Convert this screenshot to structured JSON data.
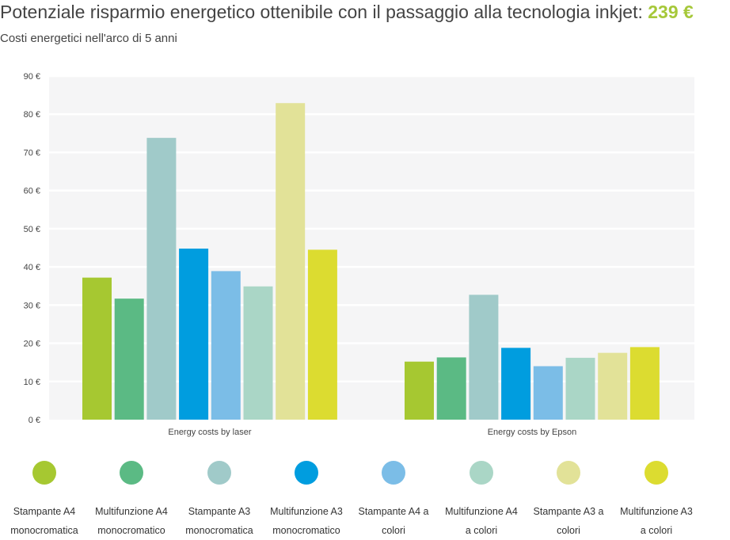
{
  "header": {
    "title_text": "Potenziale risparmio energetico ottenibile con il passaggio alla tecnologia inkjet:",
    "title_amount": "239 €",
    "subtitle": "Costi energetici nell'arco di 5 anni"
  },
  "colors": {
    "accent": "#a6c83a",
    "plot_background": "#f5f5f6",
    "gridline": "#ffffff"
  },
  "chart_data": {
    "type": "bar",
    "title": "",
    "xlabel": "",
    "ylabel": "",
    "ylim": [
      0,
      90
    ],
    "y_ticks": [
      0,
      10,
      20,
      30,
      40,
      50,
      60,
      70,
      80,
      90
    ],
    "y_unit": "€",
    "grid": true,
    "legend_position": "bottom",
    "categories": [
      "Energy costs by laser",
      "Energy costs by Epson"
    ],
    "series": [
      {
        "name": "Stampante A4 monocromatica",
        "label_lines": [
          "Stampante A4",
          "monocromatica"
        ],
        "color": "#a6c831",
        "values": [
          37.2,
          15.2
        ]
      },
      {
        "name": "Multifunzione A4 monocromatico",
        "label_lines": [
          "Multifunzione A4",
          "monocromatico"
        ],
        "color": "#5bba84",
        "values": [
          31.7,
          16.3
        ]
      },
      {
        "name": "Stampante A3 monocromatica",
        "label_lines": [
          "Stampante A3",
          "monocromatica"
        ],
        "color": "#a0cac9",
        "values": [
          73.8,
          32.7
        ]
      },
      {
        "name": "Multifunzione A3 monocromatico",
        "label_lines": [
          "Multifunzione A3",
          "monocromatico"
        ],
        "color": "#009ddf",
        "values": [
          44.8,
          18.8
        ]
      },
      {
        "name": "Stampante A4 a colori",
        "label_lines": [
          "Stampante A4 a",
          "colori"
        ],
        "color": "#7bbde7",
        "values": [
          38.9,
          14.0
        ]
      },
      {
        "name": "Multifunzione A4 a colori",
        "label_lines": [
          "Multifunzione A4",
          "a colori"
        ],
        "color": "#aad6c6",
        "values": [
          34.9,
          16.2
        ]
      },
      {
        "name": "Stampante A3 a colori",
        "label_lines": [
          "Stampante A3 a",
          "colori"
        ],
        "color": "#e2e298",
        "values": [
          82.9,
          17.5
        ]
      },
      {
        "name": "Multifunzione A3 a colori",
        "label_lines": [
          "Multifunzione A3",
          "a colori"
        ],
        "color": "#dcdc30",
        "values": [
          44.5,
          19.0
        ]
      }
    ]
  }
}
